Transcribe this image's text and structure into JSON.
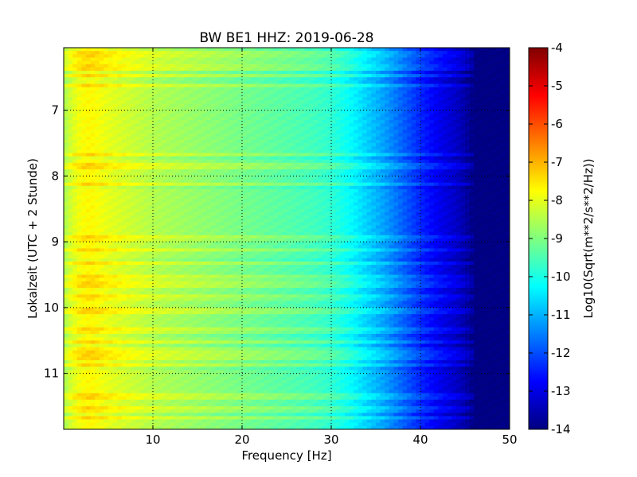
{
  "chart_data": {
    "type": "heatmap",
    "title": "BW BE1 HHZ: 2019-06-28",
    "xlabel": "Frequency [Hz]",
    "ylabel": "Lokalzeit (UTC + 2 Stunde)",
    "xlim": [
      0,
      50
    ],
    "ylim": [
      6.05,
      11.85
    ],
    "y_inverted": true,
    "xticks": [
      "10",
      "20",
      "30",
      "40",
      "50"
    ],
    "yticks": [
      "7",
      "8",
      "9",
      "10",
      "11"
    ],
    "grid": true,
    "colormap": "jet",
    "colorbar": {
      "label": "Log10(Sqrt(m**2/s**2/Hz))",
      "range": [
        -14,
        -4
      ],
      "ticks": [
        "-4",
        "-5",
        "-6",
        "-7",
        "-8",
        "-9",
        "-10",
        "-11",
        "-12",
        "-13",
        "-14"
      ]
    },
    "spectrum_profile": {
      "frequency_hz": [
        0,
        1,
        2,
        3,
        5,
        8,
        10,
        15,
        20,
        25,
        28,
        30,
        32,
        34,
        36,
        38,
        40,
        42,
        44,
        45,
        46,
        50
      ],
      "log10_psd": [
        -8.6,
        -8.1,
        -7.8,
        -7.7,
        -8.0,
        -8.3,
        -8.5,
        -8.8,
        -9.1,
        -9.4,
        -9.6,
        -9.8,
        -10.2,
        -10.7,
        -11.2,
        -11.8,
        -12.4,
        -12.9,
        -13.3,
        -13.6,
        -14.0,
        -14.0
      ]
    },
    "bright_bands_hour": [
      6.12,
      6.2,
      6.3,
      6.38,
      6.48,
      6.62,
      7.68,
      7.85,
      8.12,
      8.95,
      9.12,
      9.32,
      9.55,
      9.65,
      9.85,
      10.05,
      10.35,
      10.52,
      10.65,
      10.75,
      10.88,
      11.35,
      11.55,
      11.68
    ],
    "dark_bands_hour": [
      6.25,
      6.42,
      6.55,
      7.72,
      8.18,
      8.98,
      9.28,
      9.58,
      9.88,
      10.4,
      10.6,
      10.92,
      11.6
    ]
  }
}
